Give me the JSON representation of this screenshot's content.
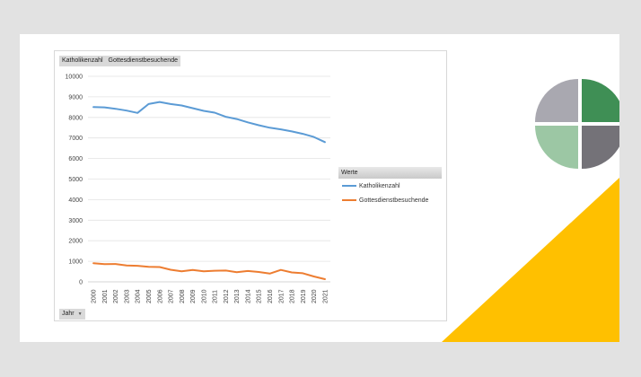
{
  "field_buttons": [
    "Katholikenzahl",
    "Gottesdienstbesuchende"
  ],
  "legend": {
    "title": "Werte",
    "items": [
      "Katholikenzahl",
      "Gottesdienstbesuchende"
    ]
  },
  "axis_field": {
    "label": "Jahr",
    "dropdown_icon": "dropdown-arrow-icon"
  },
  "colors": {
    "katholikenzahl": "#5b9bd5",
    "gottesdienstbesuchende": "#ed7d31",
    "accent_triangle": "#ffc000",
    "logo_dark_green": "#3f8f55",
    "logo_light_green": "#9cc7a4",
    "logo_grey": "#a9a8b0",
    "logo_dark_grey": "#747278"
  },
  "chart_data": {
    "type": "line",
    "title": "",
    "xlabel": "",
    "ylabel": "",
    "ylim": [
      0,
      10000
    ],
    "yticks": [
      0,
      1000,
      2000,
      3000,
      4000,
      5000,
      6000,
      7000,
      8000,
      9000,
      10000
    ],
    "grid": true,
    "legend_position": "right",
    "categories": [
      "2000",
      "2001",
      "2002",
      "2003",
      "2004",
      "2005",
      "2006",
      "2007",
      "2008",
      "2009",
      "2010",
      "2011",
      "2012",
      "2013",
      "2014",
      "2015",
      "2016",
      "2017",
      "2018",
      "2019",
      "2020",
      "2021"
    ],
    "series": [
      {
        "name": "Katholikenzahl",
        "values": [
          8500,
          8490,
          8420,
          8330,
          8220,
          8650,
          8750,
          8650,
          8580,
          8450,
          8320,
          8230,
          8030,
          7920,
          7760,
          7620,
          7500,
          7420,
          7320,
          7200,
          7050,
          6800
        ]
      },
      {
        "name": "Gottesdienstbesuchende",
        "values": [
          910,
          860,
          870,
          800,
          780,
          730,
          720,
          590,
          510,
          580,
          510,
          540,
          550,
          470,
          530,
          480,
          400,
          580,
          460,
          420,
          260,
          130
        ]
      }
    ]
  }
}
